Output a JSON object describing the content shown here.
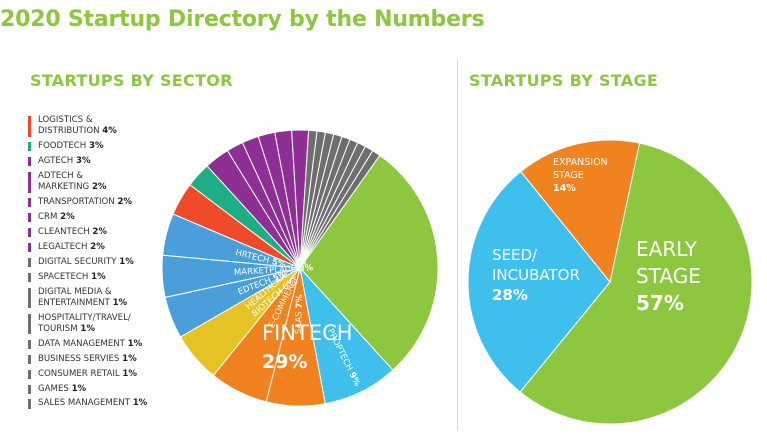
{
  "title": "2020 Startup Directory by the Numbers",
  "colors": {
    "green": "#8dc63f",
    "blue": "#3fbfec",
    "orange": "#f0821f",
    "yellow": "#e6c325",
    "mid_blue": "#4a9fdb",
    "teal": "#1fae84",
    "red": "#ef4b2a",
    "purple": "#8e2f96",
    "gray": "#6e6e6e"
  },
  "chart_data": [
    {
      "type": "pie",
      "title": "STARTUPS BY SECTOR",
      "slices": [
        {
          "label": "LOGISTICS & DISTRIBUTION",
          "value": 4,
          "color": "#ef4b2a"
        },
        {
          "label": "FOODTECH",
          "value": 3,
          "color": "#1fae84"
        },
        {
          "label": "AGTECH",
          "value": 3,
          "color": "#8e2f96"
        },
        {
          "label": "ADTECH & MARKETING",
          "value": 2,
          "color": "#8e2f96"
        },
        {
          "label": "TRANSPORTATION",
          "value": 2,
          "color": "#8e2f96"
        },
        {
          "label": "CRM",
          "value": 2,
          "color": "#8e2f96"
        },
        {
          "label": "CLEANTECH",
          "value": 2,
          "color": "#8e2f96"
        },
        {
          "label": "LEGALTECH",
          "value": 2,
          "color": "#8e2f96"
        },
        {
          "label": "DIGITAL SECURITY",
          "value": 1,
          "color": "#6e6e6e"
        },
        {
          "label": "SPACETECH",
          "value": 1,
          "color": "#6e6e6e"
        },
        {
          "label": "DIGITAL MEDIA & ENTERTAINMENT",
          "value": 1,
          "color": "#6e6e6e"
        },
        {
          "label": "HOSPITALITY/TRAVEL/ TOURISM",
          "value": 1,
          "color": "#6e6e6e"
        },
        {
          "label": "DATA MANAGEMENT",
          "value": 1,
          "color": "#6e6e6e"
        },
        {
          "label": "BUSINESS SERVIES",
          "value": 1,
          "color": "#6e6e6e"
        },
        {
          "label": "CONSUMER RETAIL",
          "value": 1,
          "color": "#6e6e6e"
        },
        {
          "label": "GAMES",
          "value": 1,
          "color": "#6e6e6e"
        },
        {
          "label": "SALES MANAGEMENT",
          "value": 1,
          "color": "#6e6e6e"
        },
        {
          "label": "FINTECH",
          "value": 29,
          "color": "#8dc63f"
        },
        {
          "label": "PROPTECH",
          "value": 9,
          "color": "#3fbfec"
        },
        {
          "label": "SAAS",
          "value": 7,
          "color": "#f0821f"
        },
        {
          "label": "E-COMMERCE",
          "value": 7,
          "color": "#f0821f"
        },
        {
          "label": "HEALTHCARE/ BIOTECH",
          "value": 6,
          "color": "#e6c325"
        },
        {
          "label": "EDTECH",
          "value": 5,
          "color": "#4a9fdb"
        },
        {
          "label": "MARKETPLACE",
          "value": 5,
          "color": "#4a9fdb"
        },
        {
          "label": "HRTECH",
          "value": 5,
          "color": "#4a9fdb"
        }
      ],
      "legend_labels": [
        "LOGISTICS & DISTRIBUTION",
        "FOODTECH",
        "AGTECH",
        "ADTECH & MARKETING",
        "TRANSPORTATION",
        "CRM",
        "CLEANTECH",
        "LEGALTECH",
        "DIGITAL SECURITY",
        "SPACETECH",
        "DIGITAL MEDIA & ENTERTAINMENT",
        "HOSPITALITY/TRAVEL/ TOURISM",
        "DATA MANAGEMENT",
        "BUSINESS SERVIES",
        "CONSUMER RETAIL",
        "GAMES",
        "SALES MANAGEMENT"
      ],
      "slice_labels": [
        "FINTECH",
        "PROPTECH",
        "SAAS",
        "E-COMMERCE",
        "HEALTHCARE/ BIOTECH",
        "EDTECH",
        "MARKETPLACE",
        "HRTECH"
      ],
      "legend_placement": "left",
      "value_suffix": "%"
    },
    {
      "type": "pie",
      "title": "STARTUPS BY STAGE",
      "slices": [
        {
          "label": "EARLY STAGE",
          "value": 57,
          "color": "#8dc63f"
        },
        {
          "label": "SEED/ INCUBATOR",
          "value": 28,
          "color": "#3fbfec"
        },
        {
          "label": "EXPANSION STAGE",
          "value": 14,
          "color": "#f0821f"
        }
      ],
      "value_suffix": "%"
    }
  ]
}
